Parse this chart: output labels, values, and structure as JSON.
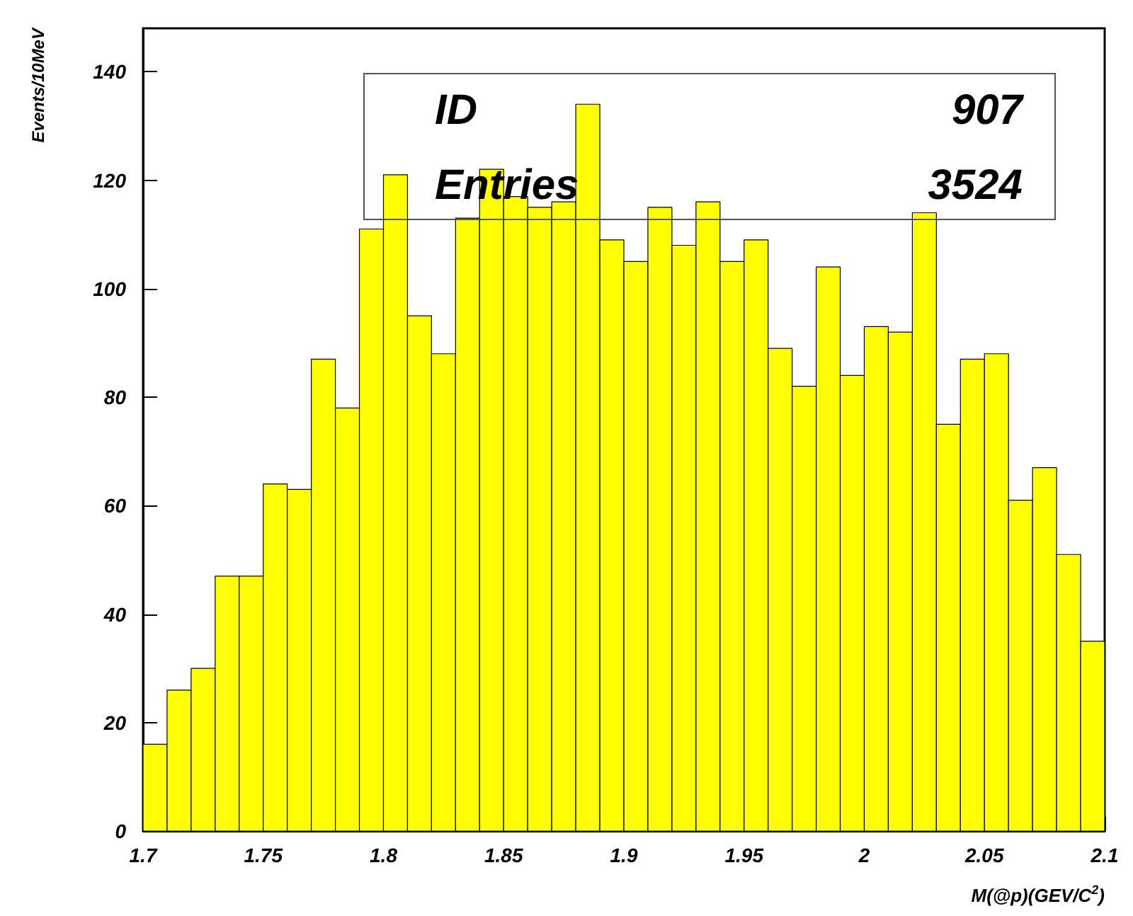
{
  "chart_data": {
    "type": "histogram",
    "xlabel": "M(@p)(GEV/C$^{2}$)",
    "ylabel": "Events/10MeV",
    "bins": [
      1.7,
      1.71,
      1.72,
      1.73,
      1.74,
      1.75,
      1.76,
      1.77,
      1.78,
      1.79,
      1.8,
      1.81,
      1.82,
      1.83,
      1.84,
      1.85,
      1.86,
      1.87,
      1.88,
      1.89,
      1.9,
      1.91,
      1.92,
      1.93,
      1.94,
      1.95,
      1.96,
      1.97,
      1.98,
      1.99,
      2.0,
      2.01,
      2.02,
      2.03,
      2.04,
      2.05,
      2.06,
      2.07,
      2.08,
      2.09,
      2.1
    ],
    "values": [
      16,
      26,
      30,
      47,
      47,
      64,
      63,
      87,
      78,
      111,
      121,
      95,
      88,
      113,
      122,
      117,
      115,
      116,
      134,
      109,
      105,
      115,
      108,
      116,
      105,
      109,
      89,
      82,
      104,
      84,
      93,
      92,
      114,
      75,
      87,
      88,
      61,
      67,
      51,
      35
    ],
    "color": "#ffff00",
    "xlim": [
      1.7,
      2.1
    ],
    "xticks": [
      1.7,
      1.75,
      1.8,
      1.85,
      1.9,
      1.95,
      2,
      2.05,
      2.1
    ],
    "ylim": [
      0,
      148
    ],
    "yticks": [
      0,
      20,
      40,
      60,
      80,
      100,
      120,
      140
    ],
    "grid": false,
    "annotations": [
      "ID",
      "907",
      "Entries",
      "3524"
    ]
  }
}
